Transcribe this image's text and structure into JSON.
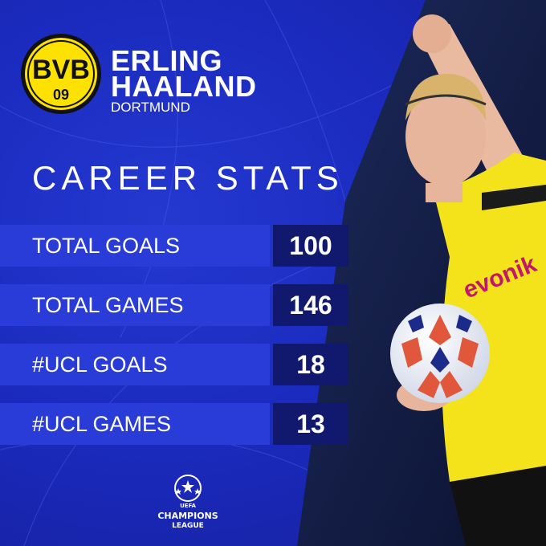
{
  "player": {
    "first_name": "ERLING",
    "last_name": "HAALAND",
    "club": "DORTMUND"
  },
  "crest": {
    "text": "BVB",
    "year": "09"
  },
  "heading": "CAREER STATS",
  "stats": [
    {
      "label": "TOTAL GOALS",
      "value": "100"
    },
    {
      "label": "TOTAL GAMES",
      "value": "146"
    },
    {
      "label": "#UCL GOALS",
      "value": "18"
    },
    {
      "label": "#UCL GAMES",
      "value": "13"
    }
  ],
  "competition_logo": {
    "uefa": "UEFA",
    "line1": "CHAMPIONS",
    "line2": "LEAGUE"
  },
  "colors": {
    "background": "#1b2bbf",
    "label_bar": "#2a3cd8",
    "value_box": "#10196e",
    "bvb_yellow": "#fde100",
    "text": "#ffffff"
  },
  "sponsor_on_shirt": "evonik"
}
